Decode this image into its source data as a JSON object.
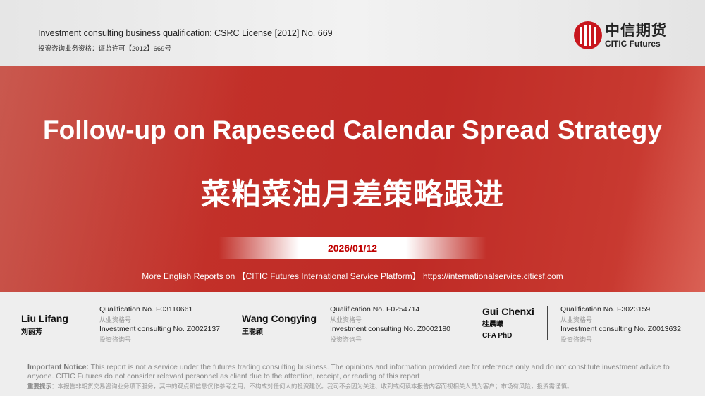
{
  "header": {
    "license_en": "Investment consulting business qualification: CSRC License [2012] No. 669",
    "license_cn": "投资咨询业务资格：证监许可【2012】669号",
    "logo": {
      "cn": "中信期货",
      "en": "CITIC Futures",
      "color": "#c8161d"
    }
  },
  "cover": {
    "title_en": "Follow-up on Rapeseed Calendar Spread Strategy",
    "title_cn": "菜粕菜油月差策略跟进",
    "date": "2026/01/12",
    "more_reports": "More English Reports on 【CITIC Futures International Service Platform】 https://internationalservice.citicsf.com",
    "band_color": "#c0302a",
    "date_color": "#c00000"
  },
  "authors": [
    {
      "name": "Liu Lifang",
      "name_cn": "刘丽芳",
      "qualification": "Qualification  No.  F03110661",
      "qualification_cn": "从业资格号",
      "consulting": "Investment  consulting  No.  Z0022137",
      "consulting_cn": "投资咨询号"
    },
    {
      "name": "Wang Congying",
      "name_cn": "王聪颖",
      "qualification": "Qualification  No.  F0254714",
      "qualification_cn": "从业资格号",
      "consulting": "Investment  consulting  No.  Z0002180",
      "consulting_cn": "投资咨询号"
    },
    {
      "name": "Gui Chenxi",
      "name_cn": "桂晨曦",
      "title": "CFA PhD",
      "qualification": "Qualification  No.  F3023159",
      "qualification_cn": "从业资格号",
      "consulting": "Investment  consulting  No.  Z0013632",
      "consulting_cn": "投资咨询号"
    }
  ],
  "notice": {
    "label": "Important Notice:",
    "text": " This report is not a service under the futures trading consulting business. The opinions and information provided are for reference only and do not constitute investment advice to anyone. CITIC Futures do not consider relevant personnel as client due to the attention, receipt, or reading of this report",
    "label_cn": "重要提示：",
    "text_cn": "本报告非期货交易咨询业务项下服务，其中的观点和信息仅作参考之用，不构成对任何人的投资建议。我司不会因为关注、收到或阅读本报告内容而视相关人员为客户；市场有风险，投资需谨慎。"
  }
}
